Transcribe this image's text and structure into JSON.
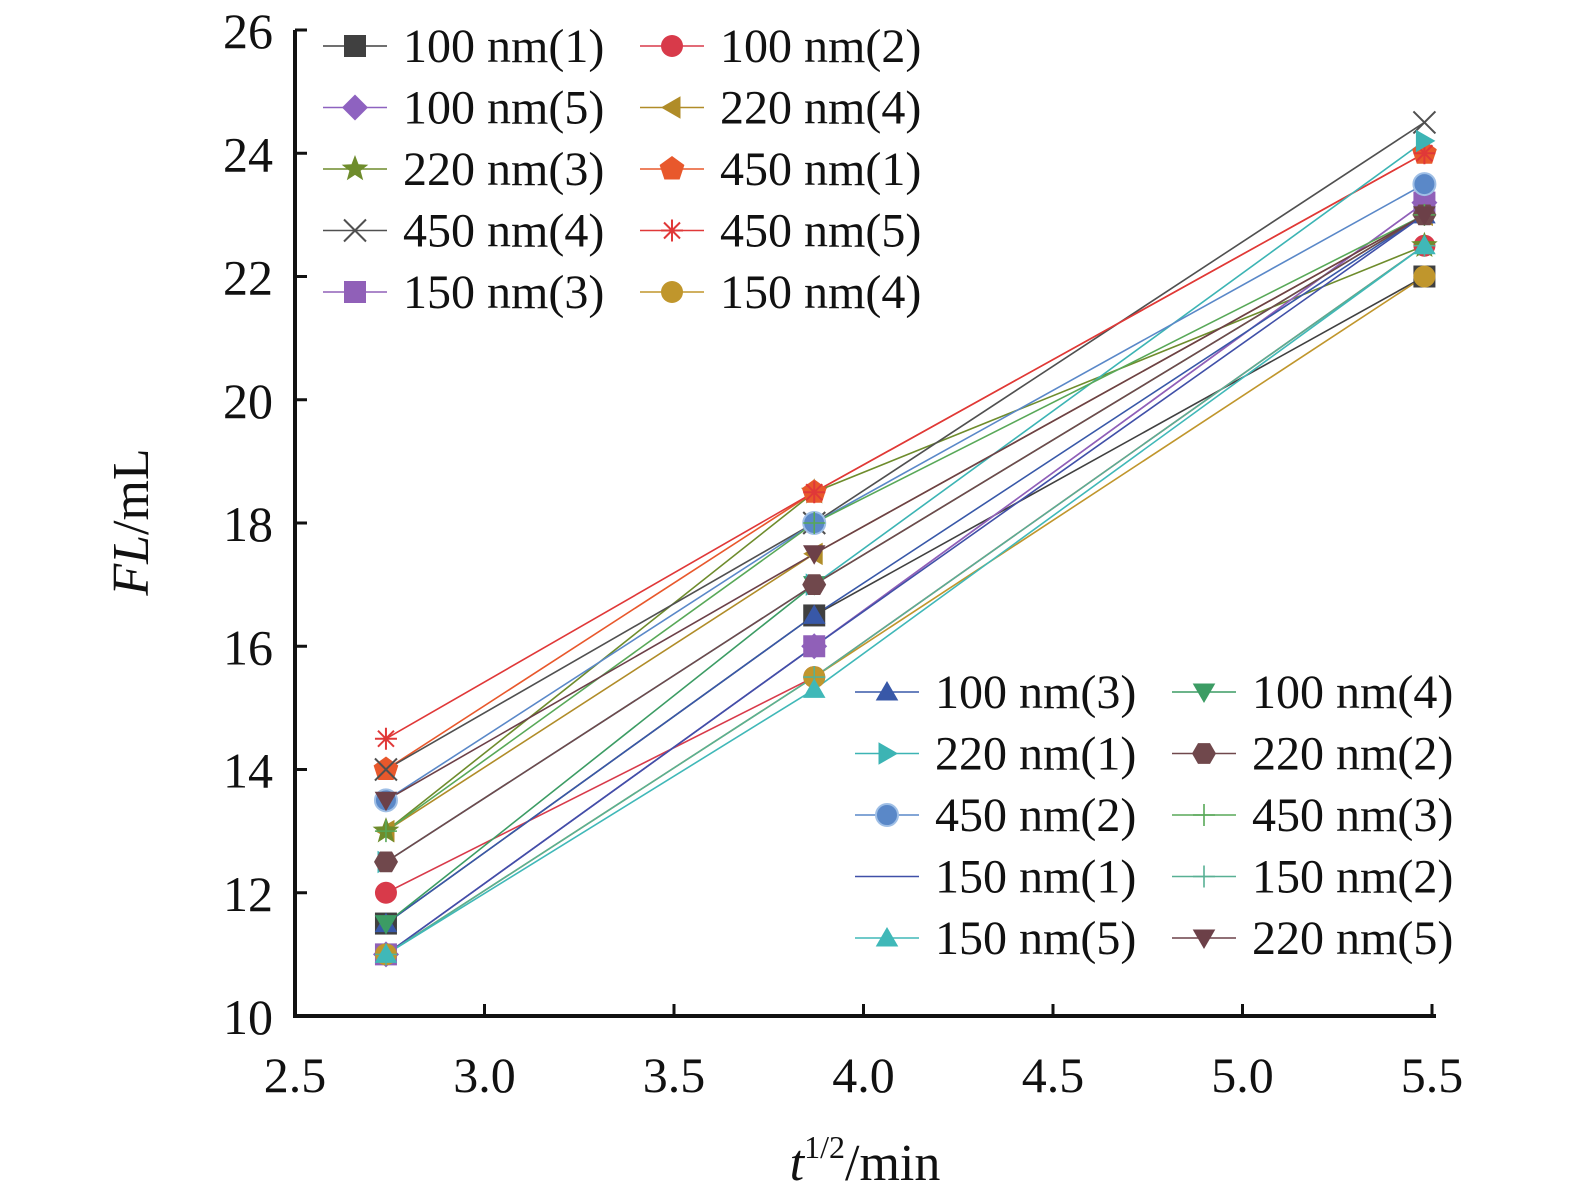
{
  "chart_data": {
    "type": "line",
    "x": [
      2.74,
      3.87,
      5.48
    ],
    "xlabel": {
      "italic": "t",
      "sup": "1/2",
      "rest": "/min"
    },
    "ylabel": {
      "italic": "FL",
      "rest": "/mL"
    },
    "xlim": [
      2.5,
      5.5
    ],
    "ylim": [
      10,
      26
    ],
    "xticks": [
      "2.5",
      "3.0",
      "3.5",
      "4.0",
      "4.5",
      "5.0",
      "5.5"
    ],
    "xtick_values": [
      2.5,
      3.0,
      3.5,
      4.0,
      4.5,
      5.0,
      5.5
    ],
    "yticks": [
      "10",
      "12",
      "14",
      "16",
      "18",
      "20",
      "22",
      "24",
      "26"
    ],
    "ytick_values": [
      10,
      12,
      14,
      16,
      18,
      20,
      22,
      24,
      26
    ],
    "grid": false,
    "legend_placement": [
      "top-left",
      "bottom-right"
    ],
    "series": [
      {
        "name": "100 nm(1)",
        "values": [
          11.5,
          16.5,
          22
        ],
        "color": "#404040",
        "marker": "square"
      },
      {
        "name": "100 nm(2)",
        "values": [
          12,
          15.5,
          22.5
        ],
        "color": "#d83a4a",
        "marker": "circle"
      },
      {
        "name": "100 nm(5)",
        "values": [
          11,
          16,
          23.2
        ],
        "color": "#8e62c0",
        "marker": "diamond"
      },
      {
        "name": "220 nm(4)",
        "values": [
          13,
          17.5,
          23
        ],
        "color": "#b08c28",
        "marker": "triangle-left"
      },
      {
        "name": "220 nm(3)",
        "values": [
          13,
          18.5,
          22.5
        ],
        "color": "#6e8c2c",
        "marker": "star"
      },
      {
        "name": "450 nm(1)",
        "values": [
          14,
          18.5,
          24
        ],
        "color": "#e8582c",
        "marker": "pentagon"
      },
      {
        "name": "450 nm(4)",
        "values": [
          14,
          18,
          24.5
        ],
        "color": "#505050",
        "marker": "x"
      },
      {
        "name": "450 nm(5)",
        "values": [
          14.5,
          18.5,
          24
        ],
        "color": "#e03838",
        "marker": "asterisk"
      },
      {
        "name": "150 nm(3)",
        "values": [
          11,
          16,
          23.2
        ],
        "color": "#9060b8",
        "marker": "square"
      },
      {
        "name": "150 nm(4)",
        "values": [
          11,
          15.5,
          22
        ],
        "color": "#c0962c",
        "marker": "circle"
      },
      {
        "name": "100 nm(3)",
        "values": [
          11.5,
          16.5,
          23
        ],
        "color": "#3858a8",
        "marker": "triangle-up"
      },
      {
        "name": "100 nm(4)",
        "values": [
          11.5,
          17,
          23
        ],
        "color": "#3c9c64",
        "marker": "triangle-down"
      },
      {
        "name": "220 nm(1)",
        "values": [
          12.5,
          17,
          24.2
        ],
        "color": "#3cb4b4",
        "marker": "triangle-right"
      },
      {
        "name": "220 nm(2)",
        "values": [
          12.5,
          17,
          23
        ],
        "color": "#70484c",
        "marker": "hexagon"
      },
      {
        "name": "450 nm(2)",
        "values": [
          13.5,
          18,
          23.5
        ],
        "color": "#5a88c8",
        "marker": "sphere"
      },
      {
        "name": "450 nm(3)",
        "values": [
          13,
          18,
          23
        ],
        "color": "#58a858",
        "marker": "plus"
      },
      {
        "name": "150 nm(1)",
        "values": [
          11,
          16,
          23
        ],
        "color": "#4050a8",
        "marker": "none"
      },
      {
        "name": "150 nm(2)",
        "values": [
          11,
          15.5,
          22.5
        ],
        "color": "#58b094",
        "marker": "plus"
      },
      {
        "name": "150 nm(5)",
        "values": [
          11,
          15.3,
          22.5
        ],
        "color": "#40b8b8",
        "marker": "triangle-up"
      },
      {
        "name": "220 nm(5)",
        "values": [
          13.5,
          17.5,
          23
        ],
        "color": "#6c4048",
        "marker": "triangle-down"
      }
    ]
  }
}
